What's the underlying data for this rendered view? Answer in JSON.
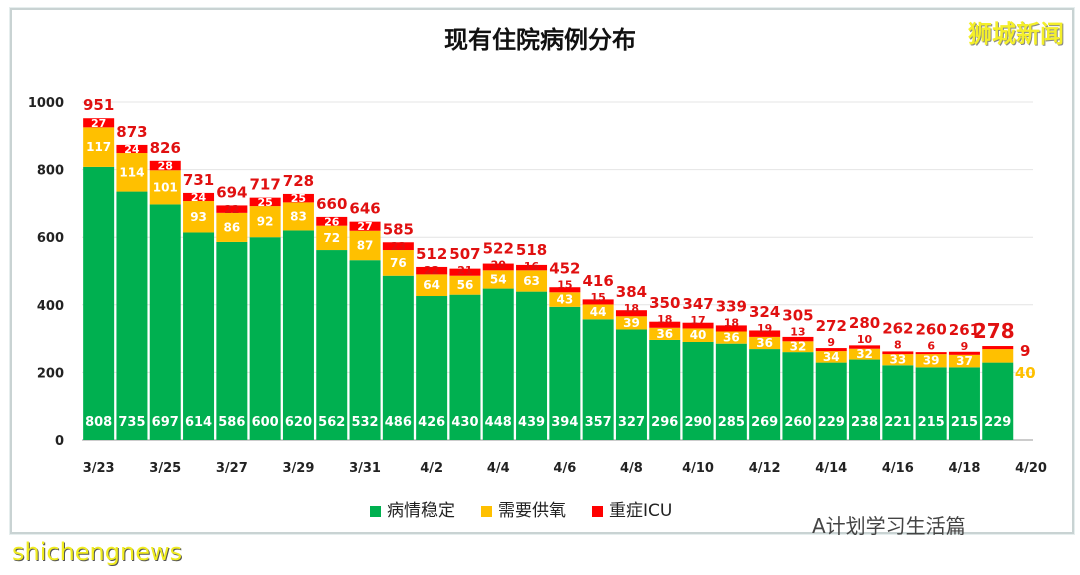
{
  "chart_data": {
    "type": "bar",
    "stacked": true,
    "title": "现有住院病例分布",
    "categories": [
      "3/23",
      "3/24",
      "3/25",
      "3/26",
      "3/27",
      "3/28",
      "3/29",
      "3/30",
      "3/31",
      "4/1",
      "4/2",
      "4/3",
      "4/4",
      "4/5",
      "4/6",
      "4/7",
      "4/8",
      "4/9",
      "4/10",
      "4/11",
      "4/12",
      "4/13",
      "4/14",
      "4/15",
      "4/16",
      "4/17",
      "4/18",
      "4/19",
      "4/20"
    ],
    "tick_labels": [
      "3/23",
      "3/25",
      "3/27",
      "3/29",
      "3/31",
      "4/2",
      "4/4",
      "4/6",
      "4/8",
      "4/10",
      "4/12",
      "4/14",
      "4/16",
      "4/18",
      "4/20"
    ],
    "series": [
      {
        "name": "病情稳定",
        "color": "#00b050",
        "values": [
          808,
          735,
          697,
          614,
          586,
          600,
          620,
          562,
          532,
          486,
          426,
          430,
          448,
          439,
          394,
          357,
          327,
          296,
          290,
          285,
          269,
          260,
          229,
          238,
          221,
          215,
          215,
          229,
          null
        ]
      },
      {
        "name": "需要供氧",
        "color": "#ffc000",
        "values": [
          117,
          114,
          101,
          93,
          86,
          92,
          83,
          72,
          87,
          76,
          64,
          56,
          54,
          63,
          43,
          44,
          39,
          36,
          40,
          36,
          36,
          32,
          34,
          32,
          33,
          39,
          37,
          40,
          null
        ]
      },
      {
        "name": "重症ICU",
        "color": "#ff0000",
        "values": [
          27,
          24,
          28,
          24,
          22,
          25,
          25,
          26,
          27,
          23,
          22,
          21,
          20,
          16,
          15,
          15,
          18,
          18,
          17,
          18,
          19,
          13,
          9,
          10,
          8,
          6,
          9,
          9,
          null
        ]
      }
    ],
    "totals": [
      951,
      873,
      826,
      731,
      694,
      717,
      728,
      660,
      646,
      585,
      512,
      507,
      522,
      518,
      452,
      416,
      384,
      350,
      347,
      339,
      324,
      305,
      272,
      280,
      262,
      260,
      261,
      278,
      null
    ],
    "ylim": [
      0,
      1000
    ],
    "yticks": [
      0,
      200,
      400,
      600,
      800,
      1000
    ],
    "grid": true,
    "legend_position": "bottom"
  },
  "logo": "狮城新闻",
  "watermark": "shichengnews",
  "account": "A计划学习生活篇"
}
